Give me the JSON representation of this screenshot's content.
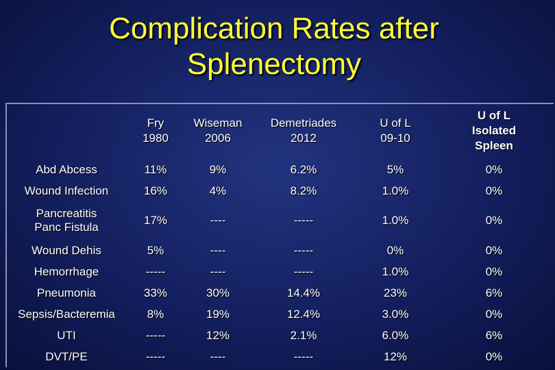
{
  "title": {
    "line1": "Complication Rates after",
    "line2": "Splenectomy"
  },
  "table": {
    "headers": [
      "",
      "Fry\n1980",
      "Wiseman\n2006",
      "Demetriades\n2012",
      "U of L\n09-10",
      "U of L\nIsolated\nSpleen"
    ],
    "rows": [
      {
        "label": "Abd Abcess",
        "cells": [
          "11%",
          "9%",
          "6.2%",
          "5%",
          "0%"
        ]
      },
      {
        "label": "Wound Infection",
        "cells": [
          "16%",
          "4%",
          "8.2%",
          "1.0%",
          "0%"
        ]
      },
      {
        "label": "Pancreatitis\nPanc Fistula",
        "cells": [
          "17%",
          "----",
          "-----",
          "1.0%",
          "0%"
        ]
      },
      {
        "label": "Wound Dehis",
        "cells": [
          "5%",
          "----",
          "-----",
          "0%",
          "0%"
        ]
      },
      {
        "label": "Hemorrhage",
        "cells": [
          "-----",
          "----",
          "-----",
          "1.0%",
          "0%"
        ]
      },
      {
        "label": "Pneumonia",
        "cells": [
          "33%",
          "30%",
          "14.4%",
          "23%",
          "6%"
        ]
      },
      {
        "label": "Sepsis/Bacteremia",
        "cells": [
          "8%",
          "19%",
          "12.4%",
          "3.0%",
          "0%"
        ]
      },
      {
        "label": "UTI",
        "cells": [
          "-----",
          "12%",
          "2.1%",
          "6.0%",
          "6%"
        ]
      },
      {
        "label": "DVT/PE",
        "cells": [
          "-----",
          "----",
          "-----",
          "12%",
          "0%"
        ]
      }
    ]
  }
}
